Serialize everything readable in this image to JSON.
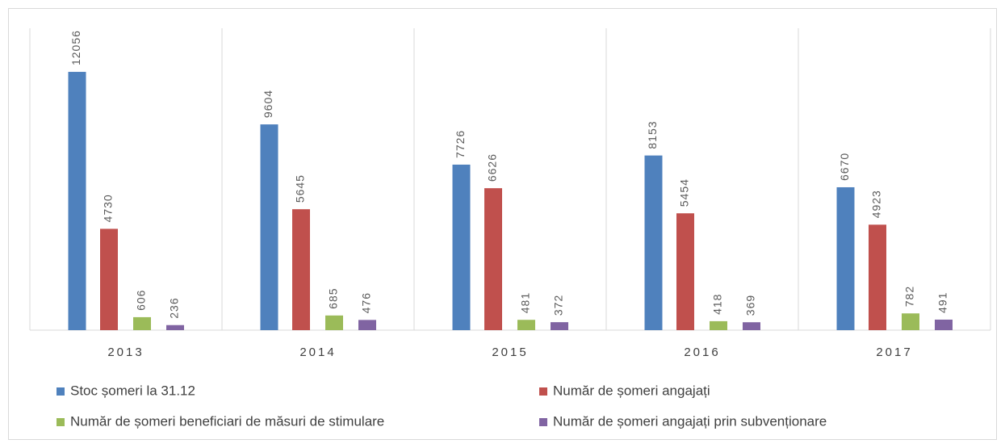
{
  "chart_data": {
    "type": "bar",
    "categories": [
      "2013",
      "2014",
      "2015",
      "2016",
      "2017"
    ],
    "series": [
      {
        "name": "Stoc șomeri  la 31.12",
        "color": "#4f81bd",
        "values": [
          12056,
          9604,
          7726,
          8153,
          6670
        ]
      },
      {
        "name": "Număr de șomeri angajați",
        "color": "#c0504d",
        "values": [
          4730,
          5645,
          6626,
          5454,
          4923
        ]
      },
      {
        "name": "Număr de șomeri beneficiari de măsuri de stimulare",
        "color": "#9bbb59",
        "values": [
          606,
          685,
          481,
          418,
          782
        ]
      },
      {
        "name": "Număr de șomeri angajați prin subvenționare",
        "color": "#8064a2",
        "values": [
          236,
          476,
          372,
          369,
          491
        ]
      }
    ],
    "legend": "bottom"
  }
}
